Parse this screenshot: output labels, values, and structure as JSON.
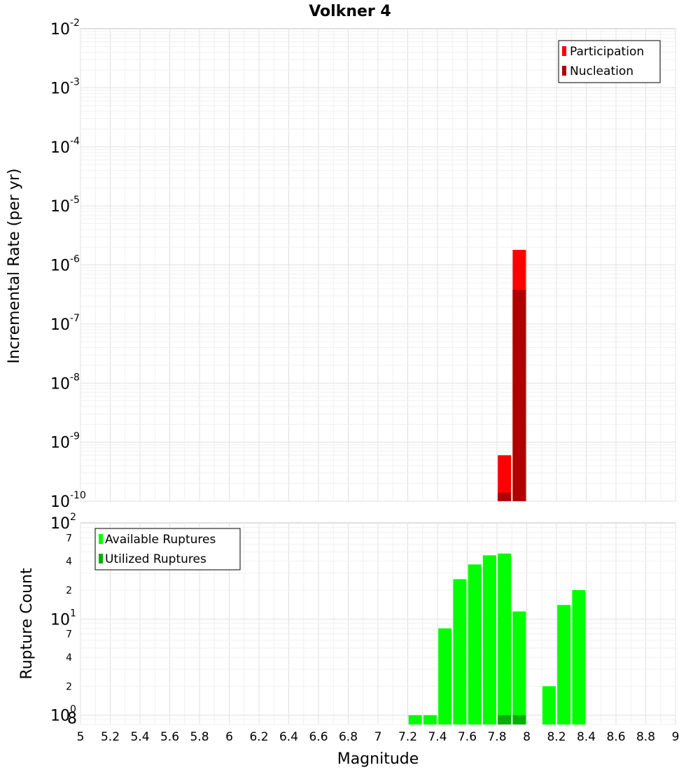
{
  "chart_data": [
    {
      "type": "bar",
      "title": "Volkner 4",
      "ylabel": "Incremental Rate (per yr)",
      "xlabel": "",
      "yscale": "log",
      "ylim": [
        1e-10,
        0.01
      ],
      "xlim": [
        5,
        9
      ],
      "x_ticks": [
        "5",
        "5.2",
        "5.4",
        "5.6",
        "5.8",
        "6",
        "6.2",
        "6.4",
        "6.6",
        "6.8",
        "7",
        "7.2",
        "7.4",
        "7.6",
        "7.8",
        "8",
        "8.2",
        "8.4",
        "8.6",
        "8.8",
        "9"
      ],
      "y_tick_labels": [
        {
          "base": "10",
          "exp": "-10"
        },
        {
          "base": "10",
          "exp": "-9"
        },
        {
          "base": "10",
          "exp": "-8"
        },
        {
          "base": "10",
          "exp": "-7"
        },
        {
          "base": "10",
          "exp": "-6"
        },
        {
          "base": "10",
          "exp": "-5"
        },
        {
          "base": "10",
          "exp": "-4"
        },
        {
          "base": "10",
          "exp": "-3"
        },
        {
          "base": "10",
          "exp": "-2"
        }
      ],
      "grid": true,
      "legend": "top-right",
      "series": [
        {
          "name": "Participation",
          "color": "#ff0000",
          "x": [
            7.85,
            7.95
          ],
          "values": [
            6e-10,
            1.8e-06
          ]
        },
        {
          "name": "Nucleation",
          "color": "#b00000",
          "x": [
            7.85,
            7.95
          ],
          "values": [
            1.4e-10,
            3.8e-07
          ]
        }
      ]
    },
    {
      "type": "bar",
      "title": "",
      "ylabel": "Rupture Count",
      "xlabel": "Magnitude",
      "yscale": "log",
      "ylim": [
        0.8,
        100
      ],
      "xlim": [
        5,
        9
      ],
      "x_ticks": [
        "5",
        "5.2",
        "5.4",
        "5.6",
        "5.8",
        "6",
        "6.2",
        "6.4",
        "6.6",
        "6.8",
        "7",
        "7.2",
        "7.4",
        "7.6",
        "7.8",
        "8",
        "8.2",
        "8.4",
        "8.6",
        "8.8",
        "9"
      ],
      "y_tick_labels": [
        {
          "base": "10",
          "exp": "0",
          "minor": "8"
        },
        {
          "base": "10",
          "exp": "1"
        },
        {
          "base": "10",
          "exp": "2"
        }
      ],
      "y_minor_labels": [
        "2",
        "4",
        "7",
        "2",
        "4",
        "7"
      ],
      "grid": true,
      "legend": "top-left",
      "series": [
        {
          "name": "Available Ruptures",
          "color": "#00ff00",
          "x": [
            7.25,
            7.35,
            7.45,
            7.55,
            7.65,
            7.75,
            7.85,
            7.95,
            8.15,
            8.25,
            8.35
          ],
          "values": [
            1,
            1,
            8,
            26,
            37,
            46,
            48,
            12,
            2,
            14,
            20
          ]
        },
        {
          "name": "Utilized Ruptures",
          "color": "#00b000",
          "x": [
            7.85,
            7.95
          ],
          "values": [
            1,
            1
          ]
        }
      ]
    }
  ]
}
